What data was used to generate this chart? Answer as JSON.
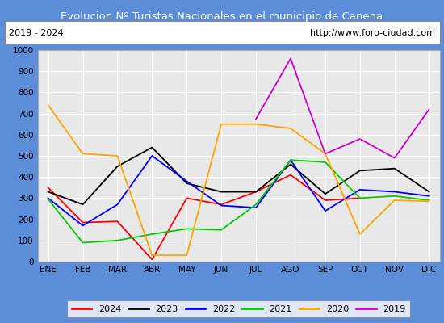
{
  "title": "Evolucion Nº Turistas Nacionales en el municipio de Canena",
  "subtitle_left": "2019 - 2024",
  "subtitle_right": "http://www.foro-ciudad.com",
  "months": [
    "ENE",
    "FEB",
    "MAR",
    "ABR",
    "MAY",
    "JUN",
    "JUL",
    "AGO",
    "SEP",
    "OCT",
    "NOV",
    "DIC"
  ],
  "series": {
    "2024": {
      "color": "#ff0000",
      "data": [
        350,
        185,
        190,
        10,
        300,
        270,
        330,
        410,
        290,
        300,
        null,
        null
      ]
    },
    "2023": {
      "color": "#000000",
      "data": [
        330,
        270,
        450,
        540,
        370,
        330,
        330,
        460,
        320,
        430,
        440,
        330
      ]
    },
    "2022": {
      "color": "#0000ff",
      "data": [
        300,
        170,
        270,
        500,
        380,
        265,
        255,
        480,
        240,
        340,
        330,
        310
      ]
    },
    "2021": {
      "color": "#00cc00",
      "data": [
        295,
        90,
        100,
        130,
        155,
        150,
        270,
        480,
        470,
        300,
        310,
        290
      ]
    },
    "2020": {
      "color": "#ffa500",
      "data": [
        740,
        510,
        500,
        30,
        30,
        650,
        650,
        630,
        510,
        130,
        290,
        285
      ]
    },
    "2019": {
      "color": "#cc00cc",
      "data": [
        null,
        null,
        null,
        null,
        null,
        null,
        675,
        960,
        510,
        580,
        490,
        720
      ]
    }
  },
  "ylim": [
    0,
    1000
  ],
  "yticks": [
    0,
    100,
    200,
    300,
    400,
    500,
    600,
    700,
    800,
    900,
    1000
  ],
  "title_bg_color": "#5b8dd9",
  "title_text_color": "#ffffff",
  "plot_bg_color": "#e8e8e8",
  "grid_color": "#ffffff",
  "legend_order": [
    "2024",
    "2023",
    "2022",
    "2021",
    "2020",
    "2019"
  ],
  "subtitle_box_color": "#ffffff",
  "fig_width": 5.5,
  "fig_height": 4.0,
  "dpi": 100
}
